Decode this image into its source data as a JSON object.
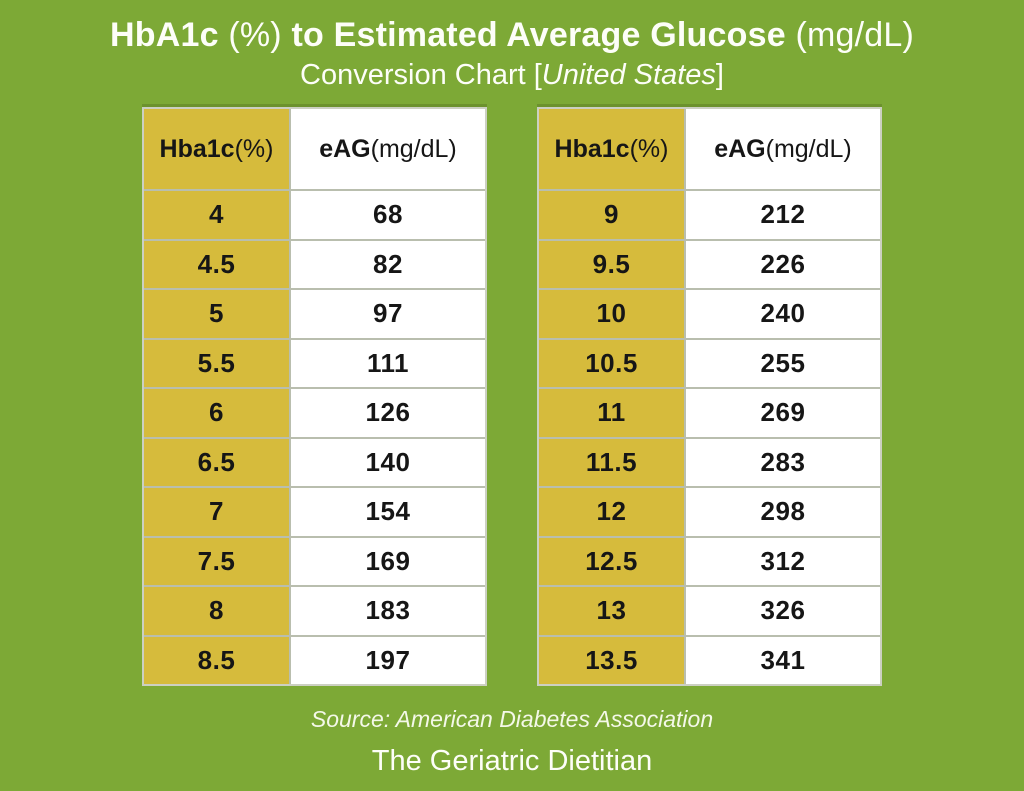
{
  "page": {
    "background_color": "#7DA936",
    "yellow_cell_color": "#D6BB3C",
    "white_cell_color": "#FFFFFF",
    "dark_text_color": "#161616",
    "light_text_color": "#FDFEF8"
  },
  "title": {
    "l1_bold1": "HbA1c",
    "l1_unit1": " (%) ",
    "l1_bold2": "to Estimated Average Glucose",
    "l1_unit2": " (mg/dL)",
    "l2_prefix": "Conversion Chart [",
    "l2_italic": "United States",
    "l2_suffix": "]"
  },
  "tables": [
    {
      "header": {
        "col1_label": "Hba1c",
        "col1_unit": " (%)",
        "col2_label": "eAG",
        "col2_unit": " (mg/dL)"
      },
      "rows": [
        {
          "hba1c": "4",
          "eag": "68"
        },
        {
          "hba1c": "4.5",
          "eag": "82"
        },
        {
          "hba1c": "5",
          "eag": "97"
        },
        {
          "hba1c": "5.5",
          "eag": "111"
        },
        {
          "hba1c": "6",
          "eag": "126"
        },
        {
          "hba1c": "6.5",
          "eag": "140"
        },
        {
          "hba1c": "7",
          "eag": "154"
        },
        {
          "hba1c": "7.5",
          "eag": "169"
        },
        {
          "hba1c": "8",
          "eag": "183"
        },
        {
          "hba1c": "8.5",
          "eag": "197"
        }
      ]
    },
    {
      "header": {
        "col1_label": "Hba1c",
        "col1_unit": " (%)",
        "col2_label": "eAG",
        "col2_unit": " (mg/dL)"
      },
      "rows": [
        {
          "hba1c": "9",
          "eag": "212"
        },
        {
          "hba1c": "9.5",
          "eag": "226"
        },
        {
          "hba1c": "10",
          "eag": "240"
        },
        {
          "hba1c": "10.5",
          "eag": "255"
        },
        {
          "hba1c": "11",
          "eag": "269"
        },
        {
          "hba1c": "11.5",
          "eag": "283"
        },
        {
          "hba1c": "12",
          "eag": "298"
        },
        {
          "hba1c": "12.5",
          "eag": "312"
        },
        {
          "hba1c": "13",
          "eag": "326"
        },
        {
          "hba1c": "13.5",
          "eag": "341"
        }
      ]
    }
  ],
  "footer": {
    "source": "Source: American Diabetes Association",
    "brand": "The Geriatric Dietitian"
  },
  "chart_data": {
    "type": "table",
    "title": "HbA1c (%) to Estimated Average Glucose (mg/dL) Conversion Chart [United States]",
    "columns": [
      "Hba1c (%)",
      "eAG (mg/dL)"
    ],
    "hba1c_percent": [
      4,
      4.5,
      5,
      5.5,
      6,
      6.5,
      7,
      7.5,
      8,
      8.5,
      9,
      9.5,
      10,
      10.5,
      11,
      11.5,
      12,
      12.5,
      13,
      13.5
    ],
    "eag_mg_dl": [
      68,
      82,
      97,
      111,
      126,
      140,
      154,
      169,
      183,
      197,
      212,
      226,
      240,
      255,
      269,
      283,
      298,
      312,
      326,
      341
    ],
    "source": "American Diabetes Association"
  }
}
